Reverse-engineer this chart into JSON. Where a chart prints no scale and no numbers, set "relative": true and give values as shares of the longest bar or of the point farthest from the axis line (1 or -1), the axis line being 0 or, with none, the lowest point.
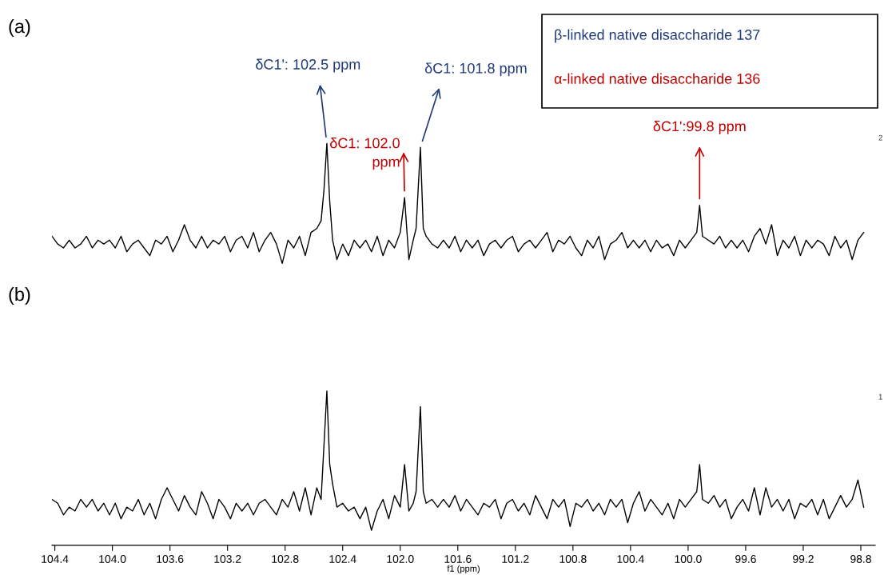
{
  "chart_data": {
    "type": "line",
    "relative": true,
    "grid": false,
    "legend": false,
    "marker": "none",
    "line_style": "solid",
    "xlabel": "f1 (ppm)",
    "xlim": [
      104.42,
      98.7
    ],
    "xticks": [
      104.4,
      {
        "value": 104,
        "label": "104.0"
      },
      103.6,
      103.2,
      102.8,
      102.4,
      {
        "value": 102,
        "label": "102.0"
      },
      101.6,
      101.2,
      100.8,
      100.4,
      {
        "value": 100,
        "label": "100.0"
      },
      99.6,
      99.2,
      98.8
    ],
    "annotations": [
      {
        "text": "δC1': 102.5 ppm",
        "x": 102.51,
        "y": 1.0
      },
      {
        "text": "δC1: 102.0 ppm",
        "x": 101.97,
        "y": 0.86
      },
      {
        "text": "δC1: 101.8 ppm",
        "x": 101.86,
        "y": 0.99
      },
      {
        "text": "δC1':99.8 ppm",
        "x": 99.92,
        "y": 0.84
      },
      "(a)",
      "(b)",
      "β-linked native disaccharide 137",
      "α-linked native disaccharide 136",
      "2",
      "1"
    ],
    "series": [
      {
        "color": "#000000",
        "x": [
          104.42,
          104.38,
          104.34,
          104.3,
          104.26,
          104.22,
          104.18,
          104.14,
          104.1,
          104.06,
          104.02,
          103.98,
          103.94,
          103.9,
          103.86,
          103.82,
          103.78,
          103.74,
          103.7,
          103.66,
          103.62,
          103.58,
          103.54,
          103.5,
          103.46,
          103.42,
          103.38,
          103.34,
          103.3,
          103.26,
          103.22,
          103.18,
          103.14,
          103.1,
          103.06,
          103.02,
          102.98,
          102.94,
          102.9,
          102.86,
          102.82,
          102.78,
          102.74,
          102.7,
          102.66,
          102.62,
          102.58,
          102.55,
          102.53,
          102.51,
          102.49,
          102.47,
          102.44,
          102.4,
          102.36,
          102.32,
          102.28,
          102.24,
          102.2,
          102.16,
          102.12,
          102.08,
          102.04,
          102.0,
          101.97,
          101.94,
          101.91,
          101.89,
          101.86,
          101.84,
          101.82,
          101.78,
          101.74,
          101.7,
          101.66,
          101.62,
          101.58,
          101.54,
          101.5,
          101.46,
          101.42,
          101.38,
          101.34,
          101.3,
          101.26,
          101.22,
          101.18,
          101.14,
          101.1,
          101.06,
          101.02,
          100.98,
          100.94,
          100.9,
          100.86,
          100.82,
          100.78,
          100.74,
          100.7,
          100.66,
          100.62,
          100.58,
          100.54,
          100.5,
          100.46,
          100.42,
          100.38,
          100.34,
          100.3,
          100.26,
          100.22,
          100.18,
          100.14,
          100.1,
          100.06,
          100.02,
          99.98,
          99.94,
          99.92,
          99.9,
          99.86,
          99.82,
          99.78,
          99.74,
          99.7,
          99.66,
          99.62,
          99.58,
          99.54,
          99.5,
          99.46,
          99.42,
          99.38,
          99.34,
          99.3,
          99.26,
          99.22,
          99.18,
          99.14,
          99.1,
          99.06,
          99.02,
          98.98,
          98.94,
          98.9,
          98.86,
          98.82,
          98.78
        ],
        "values": [
          0.76,
          0.74,
          0.73,
          0.75,
          0.73,
          0.74,
          0.76,
          0.73,
          0.75,
          0.74,
          0.75,
          0.73,
          0.76,
          0.72,
          0.74,
          0.75,
          0.73,
          0.71,
          0.75,
          0.74,
          0.76,
          0.72,
          0.75,
          0.79,
          0.75,
          0.73,
          0.76,
          0.73,
          0.75,
          0.74,
          0.76,
          0.72,
          0.75,
          0.76,
          0.73,
          0.77,
          0.72,
          0.75,
          0.77,
          0.74,
          0.69,
          0.75,
          0.73,
          0.76,
          0.71,
          0.77,
          0.78,
          0.8,
          0.88,
          1.0,
          0.85,
          0.75,
          0.7,
          0.74,
          0.71,
          0.75,
          0.73,
          0.75,
          0.72,
          0.76,
          0.71,
          0.75,
          0.73,
          0.77,
          0.86,
          0.7,
          0.75,
          0.78,
          0.99,
          0.78,
          0.76,
          0.74,
          0.73,
          0.75,
          0.73,
          0.76,
          0.72,
          0.75,
          0.73,
          0.75,
          0.71,
          0.74,
          0.75,
          0.73,
          0.75,
          0.76,
          0.72,
          0.74,
          0.75,
          0.73,
          0.75,
          0.77,
          0.72,
          0.75,
          0.74,
          0.76,
          0.73,
          0.71,
          0.75,
          0.73,
          0.76,
          0.7,
          0.74,
          0.75,
          0.77,
          0.73,
          0.75,
          0.73,
          0.75,
          0.72,
          0.75,
          0.73,
          0.74,
          0.71,
          0.75,
          0.73,
          0.75,
          0.77,
          0.84,
          0.76,
          0.75,
          0.74,
          0.76,
          0.73,
          0.75,
          0.73,
          0.75,
          0.72,
          0.76,
          0.78,
          0.74,
          0.79,
          0.71,
          0.75,
          0.73,
          0.76,
          0.71,
          0.75,
          0.73,
          0.75,
          0.74,
          0.71,
          0.76,
          0.73,
          0.75,
          0.7,
          0.75,
          0.77
        ]
      },
      {
        "color": "#000000",
        "x": [
          104.42,
          104.38,
          104.34,
          104.3,
          104.26,
          104.22,
          104.18,
          104.14,
          104.1,
          104.06,
          104.02,
          103.98,
          103.94,
          103.9,
          103.86,
          103.82,
          103.78,
          103.74,
          103.7,
          103.66,
          103.62,
          103.58,
          103.54,
          103.5,
          103.46,
          103.42,
          103.38,
          103.34,
          103.3,
          103.26,
          103.22,
          103.18,
          103.14,
          103.1,
          103.06,
          103.02,
          102.98,
          102.94,
          102.9,
          102.86,
          102.82,
          102.78,
          102.74,
          102.7,
          102.66,
          102.62,
          102.58,
          102.55,
          102.53,
          102.51,
          102.49,
          102.47,
          102.44,
          102.4,
          102.36,
          102.32,
          102.28,
          102.24,
          102.2,
          102.16,
          102.12,
          102.08,
          102.04,
          102.0,
          101.97,
          101.94,
          101.91,
          101.89,
          101.86,
          101.84,
          101.82,
          101.78,
          101.74,
          101.7,
          101.66,
          101.62,
          101.58,
          101.54,
          101.5,
          101.46,
          101.42,
          101.38,
          101.34,
          101.3,
          101.26,
          101.22,
          101.18,
          101.14,
          101.1,
          101.06,
          101.02,
          100.98,
          100.94,
          100.9,
          100.86,
          100.82,
          100.78,
          100.74,
          100.7,
          100.66,
          100.62,
          100.58,
          100.54,
          100.5,
          100.46,
          100.42,
          100.38,
          100.34,
          100.3,
          100.26,
          100.22,
          100.18,
          100.14,
          100.1,
          100.06,
          100.02,
          99.98,
          99.94,
          99.92,
          99.9,
          99.86,
          99.82,
          99.78,
          99.74,
          99.7,
          99.66,
          99.62,
          99.58,
          99.54,
          99.5,
          99.46,
          99.42,
          99.38,
          99.34,
          99.3,
          99.26,
          99.22,
          99.18,
          99.14,
          99.1,
          99.06,
          99.02,
          98.98,
          98.94,
          98.9,
          98.86,
          98.82,
          98.78
        ],
        "values": [
          0.08,
          0.07,
          0.04,
          0.06,
          0.05,
          0.08,
          0.06,
          0.08,
          0.05,
          0.07,
          0.04,
          0.07,
          0.03,
          0.06,
          0.05,
          0.08,
          0.04,
          0.07,
          0.03,
          0.08,
          0.11,
          0.08,
          0.05,
          0.09,
          0.06,
          0.04,
          0.1,
          0.07,
          0.03,
          0.08,
          0.06,
          0.03,
          0.07,
          0.05,
          0.07,
          0.04,
          0.07,
          0.08,
          0.06,
          0.04,
          0.08,
          0.06,
          0.1,
          0.05,
          0.11,
          0.04,
          0.11,
          0.08,
          0.22,
          0.36,
          0.17,
          0.12,
          0.06,
          0.07,
          0.05,
          0.06,
          0.03,
          0.06,
          0.0,
          0.05,
          0.08,
          0.03,
          0.09,
          0.06,
          0.17,
          0.05,
          0.07,
          0.1,
          0.32,
          0.1,
          0.07,
          0.08,
          0.06,
          0.08,
          0.06,
          0.09,
          0.05,
          0.08,
          0.06,
          0.04,
          0.07,
          0.06,
          0.08,
          0.03,
          0.07,
          0.08,
          0.05,
          0.07,
          0.04,
          0.09,
          0.06,
          0.03,
          0.08,
          0.06,
          0.08,
          0.01,
          0.07,
          0.06,
          0.08,
          0.05,
          0.07,
          0.04,
          0.08,
          0.06,
          0.08,
          0.02,
          0.07,
          0.1,
          0.05,
          0.08,
          0.06,
          0.04,
          0.07,
          0.03,
          0.08,
          0.06,
          0.08,
          0.1,
          0.17,
          0.08,
          0.07,
          0.09,
          0.06,
          0.08,
          0.03,
          0.06,
          0.08,
          0.05,
          0.11,
          0.04,
          0.11,
          0.06,
          0.08,
          0.05,
          0.08,
          0.03,
          0.07,
          0.06,
          0.08,
          0.04,
          0.08,
          0.03,
          0.06,
          0.09,
          0.06,
          0.08,
          0.13,
          0.06
        ]
      }
    ]
  }
}
